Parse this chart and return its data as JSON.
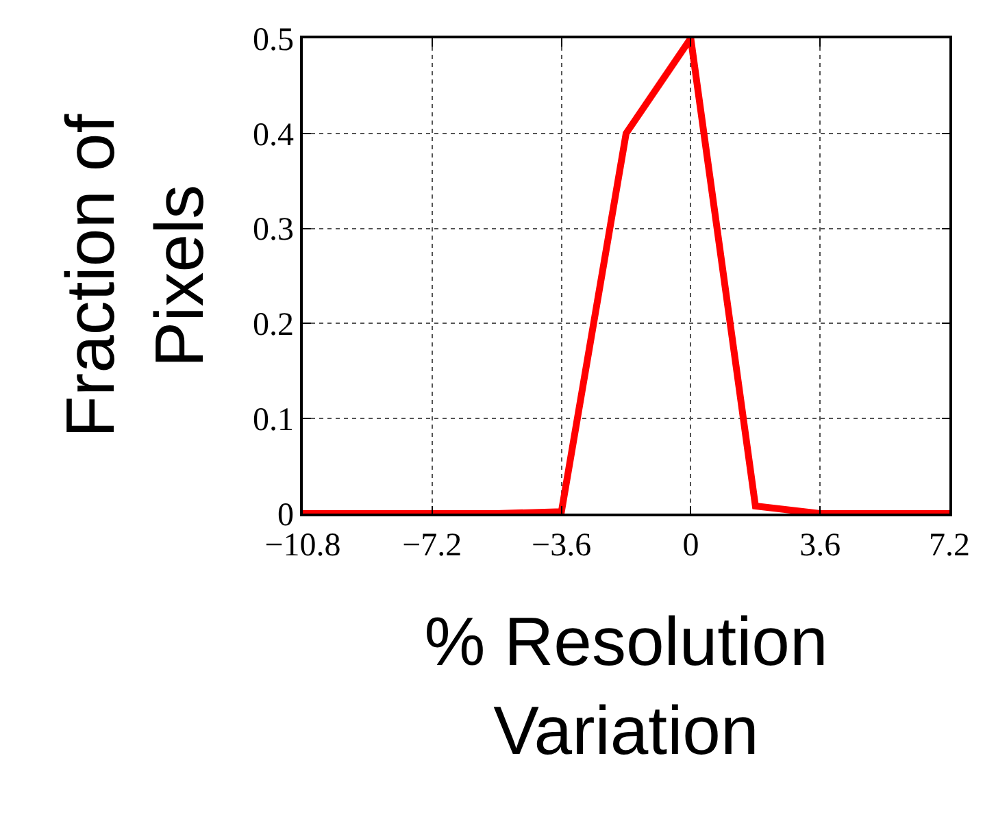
{
  "chart_data": {
    "type": "line",
    "xlabel": "% Resolution\nVariation",
    "ylabel": "Fraction of\nPixels",
    "x": [
      -10.8,
      -9,
      -7.2,
      -5.4,
      -3.6,
      -1.8,
      0,
      1.8,
      3.6,
      5.4,
      7.2
    ],
    "series": [
      {
        "color": "#ff0000",
        "values": [
          0,
          0,
          0,
          0,
          0.002,
          0.4,
          0.5,
          0.008,
          0,
          0,
          0
        ]
      }
    ],
    "xlim": [
      -10.8,
      7.2
    ],
    "xticks": [
      {
        "value": -10.8,
        "label": "−10.8"
      },
      {
        "value": -7.2,
        "label": "−7.2"
      },
      {
        "value": -3.6,
        "label": "−3.6"
      },
      0,
      3.6,
      7.2
    ],
    "ylim": [
      0,
      0.5
    ],
    "yticks": [
      0,
      0.1,
      0.2,
      0.3,
      0.4,
      0.5
    ],
    "grid": true,
    "line_style": "solid",
    "marker": "none"
  }
}
